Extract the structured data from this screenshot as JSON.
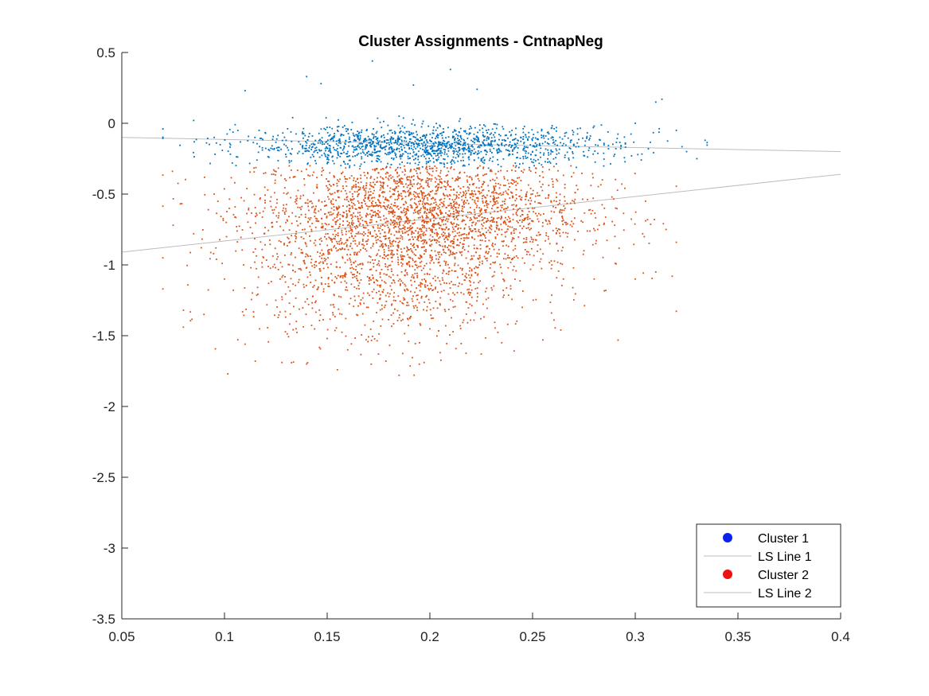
{
  "chart_data": {
    "type": "scatter",
    "title": "Cluster Assignments - CntnapNeg",
    "xlabel": "",
    "ylabel": "",
    "xlim": [
      0.05,
      0.4
    ],
    "ylim": [
      -3.5,
      0.5
    ],
    "xticks": [
      0.05,
      0.1,
      0.15,
      0.2,
      0.25,
      0.3,
      0.35,
      0.4
    ],
    "xtick_labels": [
      "0.05",
      "0.1",
      "0.15",
      "0.2",
      "0.25",
      "0.3",
      "0.35",
      "0.4"
    ],
    "yticks": [
      0.5,
      0,
      -0.5,
      -1,
      -1.5,
      -2,
      -2.5,
      -3,
      -3.5
    ],
    "ytick_labels": [
      "0.5",
      "0",
      "-0.5",
      "-1",
      "-1.5",
      "-2",
      "-2.5",
      "-3",
      "-3.5"
    ],
    "grid": false,
    "legend_position": "bottom-right",
    "legend": [
      {
        "label": "Cluster 1",
        "kind": "marker",
        "color": "#0a22ee"
      },
      {
        "label": "LS Line 1",
        "kind": "line",
        "color": "#bdbdbd"
      },
      {
        "label": "Cluster 2",
        "kind": "marker",
        "color": "#ee1111"
      },
      {
        "label": "LS Line 2",
        "kind": "line",
        "color": "#bdbdbd"
      }
    ],
    "series": [
      {
        "name": "Cluster 1",
        "kind": "scatter",
        "color": "#0072BD",
        "points": [
          [
            0.07,
            -0.04
          ],
          [
            0.085,
            0.02
          ],
          [
            0.095,
            -0.1
          ],
          [
            0.11,
            0.23
          ],
          [
            0.12,
            -0.07
          ],
          [
            0.13,
            -0.12
          ],
          [
            0.14,
            0.33
          ],
          [
            0.147,
            0.28
          ],
          [
            0.155,
            -0.05
          ],
          [
            0.16,
            -0.2
          ],
          [
            0.165,
            -0.1
          ],
          [
            0.172,
            0.44
          ],
          [
            0.175,
            -0.15
          ],
          [
            0.18,
            -0.22
          ],
          [
            0.185,
            0.05
          ],
          [
            0.19,
            -0.18
          ],
          [
            0.192,
            0.27
          ],
          [
            0.198,
            -0.25
          ],
          [
            0.2,
            -0.12
          ],
          [
            0.205,
            -0.28
          ],
          [
            0.21,
            0.38
          ],
          [
            0.215,
            -0.1
          ],
          [
            0.22,
            -0.22
          ],
          [
            0.223,
            0.24
          ],
          [
            0.23,
            -0.15
          ],
          [
            0.24,
            -0.05
          ],
          [
            0.25,
            -0.2
          ],
          [
            0.26,
            -0.1
          ],
          [
            0.27,
            -0.15
          ],
          [
            0.28,
            -0.02
          ],
          [
            0.29,
            -0.22
          ],
          [
            0.3,
            0.0
          ],
          [
            0.31,
            0.15
          ],
          [
            0.313,
            0.17
          ],
          [
            0.32,
            -0.05
          ],
          [
            0.325,
            -0.2
          ],
          [
            0.33,
            -0.25
          ],
          [
            0.334,
            -0.12
          ]
        ]
      },
      {
        "name": "LS Line 1",
        "kind": "line",
        "color": "#bdbdbd",
        "points": [
          [
            0.05,
            -0.1
          ],
          [
            0.4,
            -0.2
          ]
        ]
      },
      {
        "name": "Cluster 2",
        "kind": "scatter",
        "color": "#D95319",
        "points": [
          [
            0.07,
            -1.17
          ],
          [
            0.075,
            -0.72
          ],
          [
            0.08,
            -1.44
          ],
          [
            0.085,
            -0.78
          ],
          [
            0.09,
            -1.35
          ],
          [
            0.095,
            -0.5
          ],
          [
            0.1,
            -1.1
          ],
          [
            0.105,
            -0.42
          ],
          [
            0.11,
            -1.56
          ],
          [
            0.115,
            -1.68
          ],
          [
            0.12,
            -0.35
          ],
          [
            0.125,
            -1.25
          ],
          [
            0.13,
            -0.62
          ],
          [
            0.135,
            -1.4
          ],
          [
            0.14,
            -1.7
          ],
          [
            0.145,
            -0.45
          ],
          [
            0.15,
            -1.52
          ],
          [
            0.155,
            -0.85
          ],
          [
            0.16,
            -1.6
          ],
          [
            0.165,
            -0.55
          ],
          [
            0.17,
            -1.3
          ],
          [
            0.175,
            -1.63
          ],
          [
            0.18,
            -0.4
          ],
          [
            0.185,
            -1.78
          ],
          [
            0.19,
            -0.7
          ],
          [
            0.195,
            -1.55
          ],
          [
            0.2,
            -0.32
          ],
          [
            0.205,
            -1.62
          ],
          [
            0.21,
            -0.9
          ],
          [
            0.215,
            -1.45
          ],
          [
            0.22,
            -0.5
          ],
          [
            0.225,
            -1.63
          ],
          [
            0.23,
            -0.75
          ],
          [
            0.235,
            -1.55
          ],
          [
            0.24,
            -0.4
          ],
          [
            0.245,
            -1.3
          ],
          [
            0.25,
            -0.6
          ],
          [
            0.255,
            -1.53
          ],
          [
            0.26,
            -0.45
          ],
          [
            0.265,
            -1.1
          ],
          [
            0.27,
            -0.35
          ],
          [
            0.275,
            -0.9
          ],
          [
            0.28,
            -1.1
          ],
          [
            0.285,
            -0.6
          ],
          [
            0.29,
            -0.72
          ],
          [
            0.3,
            -1.1
          ],
          [
            0.305,
            -0.55
          ],
          [
            0.31,
            -1.05
          ],
          [
            0.315,
            -0.75
          ],
          [
            0.318,
            -1.08
          ]
        ]
      },
      {
        "name": "LS Line 2",
        "kind": "line",
        "color": "#bdbdbd",
        "points": [
          [
            0.05,
            -0.91
          ],
          [
            0.4,
            -0.36
          ]
        ]
      }
    ]
  }
}
